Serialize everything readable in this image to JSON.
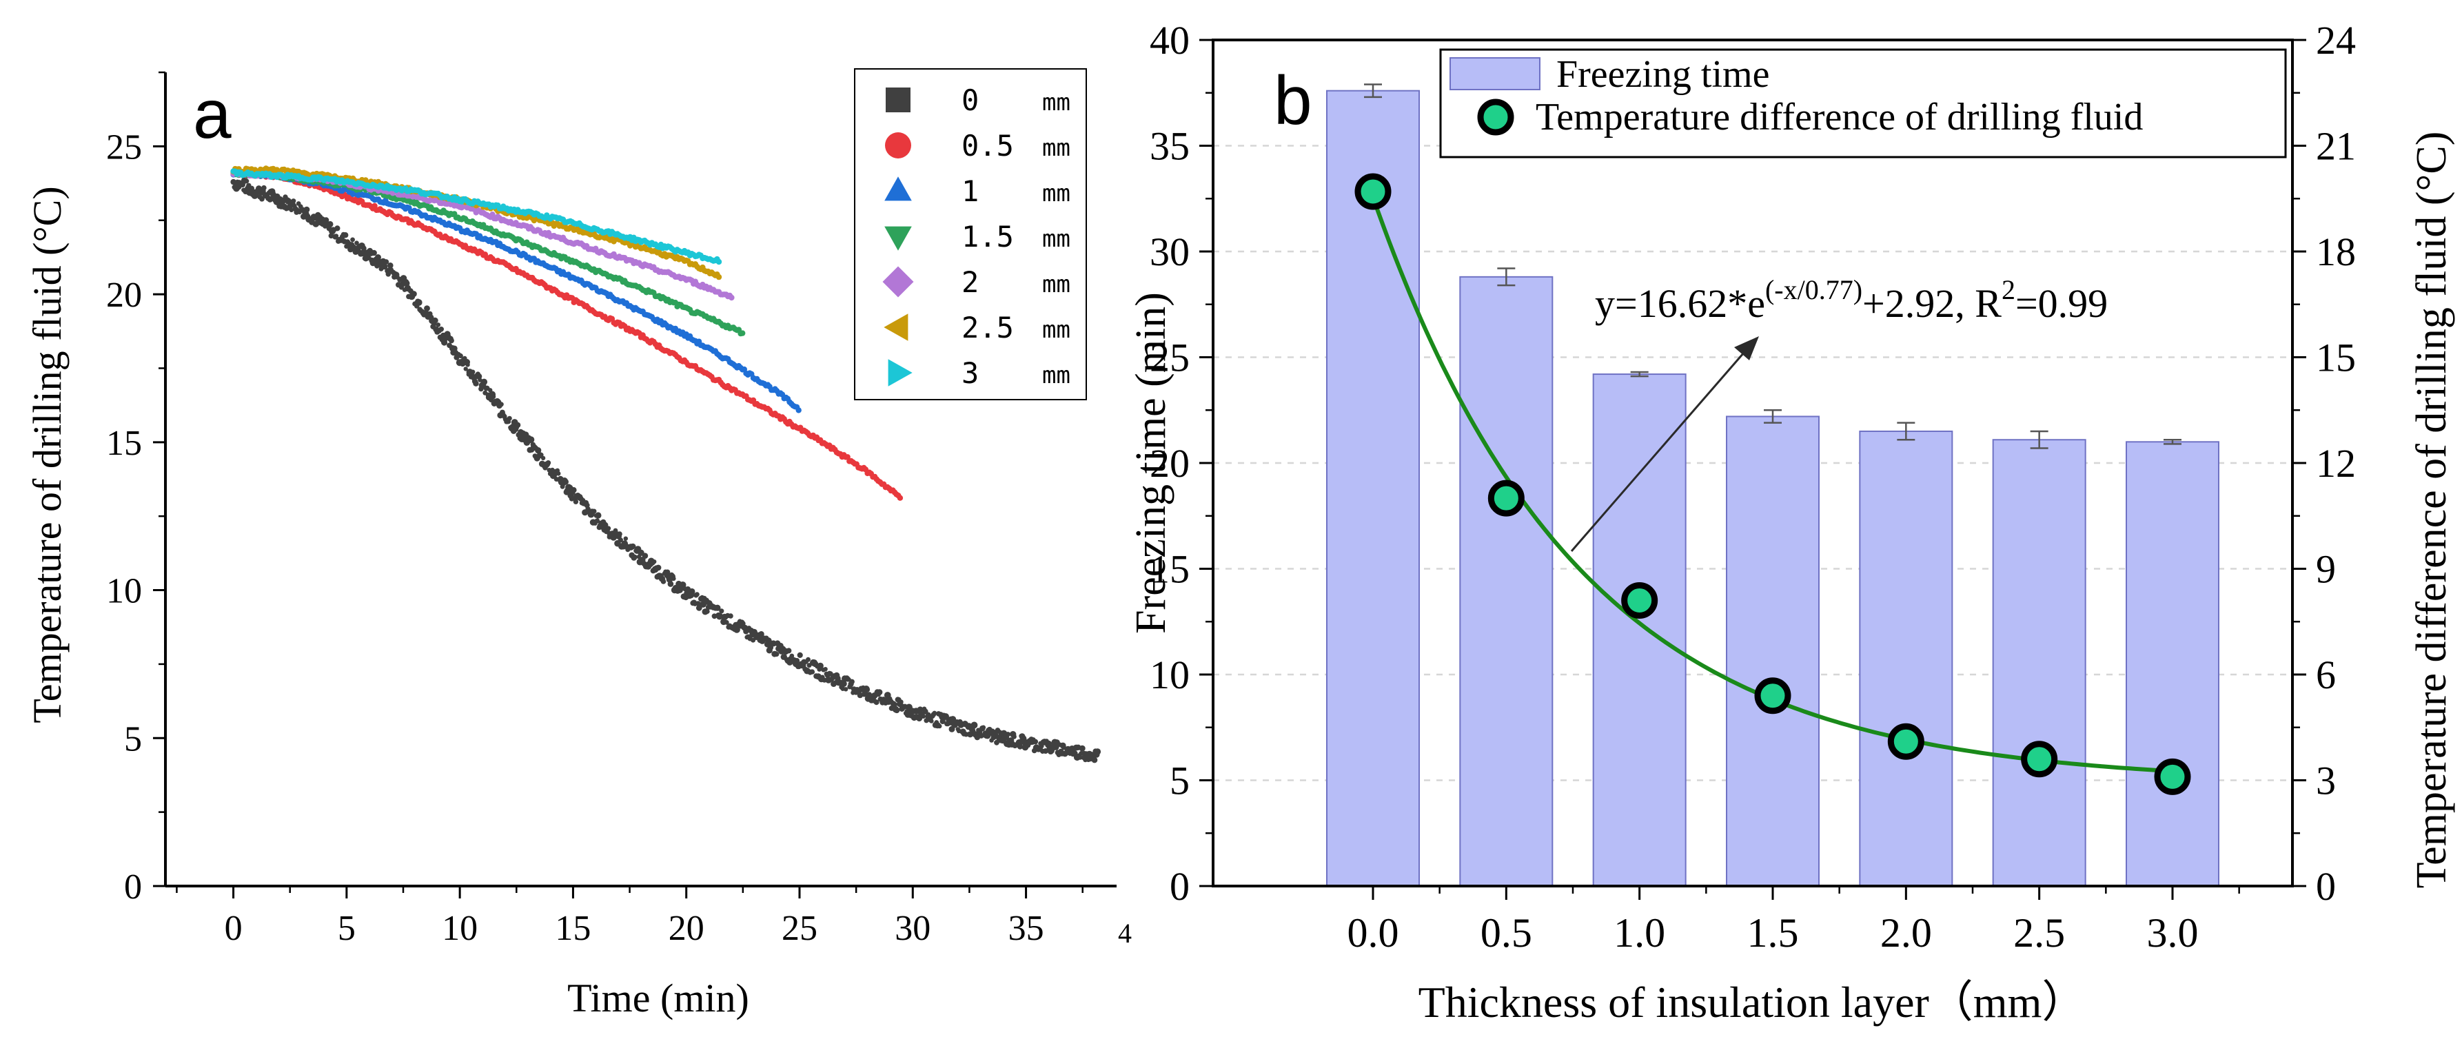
{
  "chart_data": [
    {
      "panel_label": "a",
      "type": "scatter",
      "xlabel": "Time (min)",
      "ylabel": "Temperature of drilling fluid (°C)",
      "xlim": [
        -3,
        39
      ],
      "ylim": [
        0,
        27.5
      ],
      "xticks": [
        0,
        5,
        10,
        15,
        20,
        25,
        30,
        35
      ],
      "xtick_labels": [
        "0",
        "5",
        "10",
        "15",
        "20",
        "25",
        "30",
        "35"
      ],
      "cut_tick_label": "4",
      "yticks": [
        0,
        5,
        10,
        15,
        20,
        25
      ],
      "ytick_labels": [
        "0",
        "5",
        "10",
        "15",
        "20",
        "25"
      ],
      "legend_position": "top-right",
      "series": [
        {
          "name": "0",
          "unit": "mm",
          "marker": "square",
          "color": "#404040",
          "x": [
            0,
            1,
            3,
            5,
            7,
            8,
            9,
            10,
            12,
            14,
            16,
            18,
            20,
            22,
            24,
            26,
            28,
            30,
            32,
            34,
            36,
            38.2
          ],
          "y": [
            23.8,
            23.5,
            22.9,
            21.8,
            20.8,
            19.9,
            18.9,
            17.9,
            15.9,
            14.1,
            12.4,
            11.1,
            9.9,
            8.9,
            8.0,
            7.2,
            6.5,
            5.9,
            5.4,
            5.0,
            4.7,
            4.4
          ]
        },
        {
          "name": "0.5",
          "unit": "mm",
          "marker": "circle",
          "color": "#e8383d",
          "x": [
            0,
            2,
            4,
            6,
            8,
            10,
            12,
            14,
            16,
            18,
            20,
            22,
            24,
            26,
            28,
            29.5
          ],
          "y": [
            24.1,
            24.0,
            23.6,
            23.0,
            22.4,
            21.7,
            21.0,
            20.2,
            19.4,
            18.6,
            17.7,
            16.8,
            15.9,
            15.0,
            14.0,
            13.1
          ]
        },
        {
          "name": "1",
          "unit": "mm",
          "marker": "triangle-up",
          "color": "#1f6fd6",
          "x": [
            0,
            2,
            4,
            6,
            8,
            10,
            12,
            14,
            16,
            18,
            20,
            22,
            24,
            25
          ],
          "y": [
            24.1,
            24.0,
            23.7,
            23.3,
            22.8,
            22.2,
            21.6,
            20.9,
            20.2,
            19.4,
            18.6,
            17.7,
            16.7,
            16.1
          ]
        },
        {
          "name": "1.5",
          "unit": "mm",
          "marker": "triangle-down",
          "color": "#2ea25a",
          "x": [
            0,
            2,
            4,
            6,
            8,
            10,
            12,
            14,
            16,
            18,
            20,
            22.5
          ],
          "y": [
            24.1,
            24.0,
            23.8,
            23.5,
            23.1,
            22.6,
            22.0,
            21.4,
            20.8,
            20.2,
            19.5,
            18.7
          ]
        },
        {
          "name": "2",
          "unit": "mm",
          "marker": "diamond",
          "color": "#b277d6",
          "x": [
            0,
            2,
            4,
            6,
            8,
            10,
            12,
            14,
            16,
            18,
            20,
            22
          ],
          "y": [
            24.1,
            24.0,
            23.9,
            23.6,
            23.3,
            23.0,
            22.5,
            22.0,
            21.5,
            21.0,
            20.5,
            19.9
          ]
        },
        {
          "name": "2.5",
          "unit": "mm",
          "marker": "triangle-left",
          "color": "#c99a0a",
          "x": [
            0,
            2,
            4,
            6,
            8,
            10,
            12,
            14,
            16,
            18,
            20,
            21.5
          ],
          "y": [
            24.2,
            24.2,
            24.0,
            23.8,
            23.5,
            23.2,
            22.8,
            22.4,
            22.0,
            21.6,
            21.1,
            20.6
          ]
        },
        {
          "name": "3",
          "unit": "mm",
          "marker": "triangle-right",
          "color": "#1cc6d6",
          "x": [
            0,
            2,
            4,
            6,
            8,
            10,
            12,
            14,
            16,
            18,
            20,
            21.5
          ],
          "y": [
            24.1,
            24.0,
            23.9,
            23.7,
            23.5,
            23.2,
            22.9,
            22.6,
            22.2,
            21.8,
            21.4,
            21.1
          ]
        }
      ]
    },
    {
      "panel_label": "b",
      "type": "bar",
      "xlabel": "Thickness of insulation layer（mm）",
      "ylabel": "Freezing time (min)",
      "ylabel_right": "Temperature difference of drilling fluid (°C)",
      "categories": [
        "0.0",
        "0.5",
        "1.0",
        "1.5",
        "2.0",
        "2.5",
        "3.0"
      ],
      "x": [
        0.0,
        0.5,
        1.0,
        1.5,
        2.0,
        2.5,
        3.0
      ],
      "xlim": [
        -0.6,
        3.45
      ],
      "ylim": [
        0,
        40
      ],
      "ylim_right": [
        0,
        24
      ],
      "yticks": [
        0,
        5,
        10,
        15,
        20,
        25,
        30,
        35,
        40
      ],
      "ytick_labels": [
        "0",
        "5",
        "10",
        "15",
        "20",
        "25",
        "30",
        "35",
        "40"
      ],
      "yticks_right": [
        0,
        3,
        6,
        9,
        12,
        15,
        18,
        21,
        24
      ],
      "ytick_labels_right": [
        "0",
        "3",
        "6",
        "9",
        "12",
        "15",
        "18",
        "21",
        "24"
      ],
      "grid": "horizontal dashed",
      "legend_position": "top",
      "series": [
        {
          "name": "Freezing time",
          "kind": "bar",
          "axis": "left",
          "color": "#b7bdf7",
          "values": [
            37.6,
            28.8,
            24.2,
            22.2,
            21.5,
            21.1,
            21.0
          ],
          "errors": [
            0.3,
            0.4,
            0.1,
            0.3,
            0.4,
            0.4,
            0.1
          ]
        },
        {
          "name": "Temperature difference of drilling fluid",
          "kind": "scatter",
          "axis": "right",
          "color": "#1fd08a",
          "values": [
            19.7,
            11.0,
            8.1,
            5.4,
            4.1,
            3.6,
            3.1
          ]
        }
      ],
      "fit": {
        "formula": "y=16.62*e^(-x/0.77)+2.92",
        "a": 16.62,
        "t": 0.77,
        "c": 2.92,
        "r2": 0.99,
        "color": "#1a8a1a",
        "annotation": {
          "prefix": "y=16.62*e",
          "exponent": "(-x/0.77)",
          "middle": "+2.92, R",
          "power": "2",
          "suffix": "=0.99"
        }
      }
    }
  ]
}
